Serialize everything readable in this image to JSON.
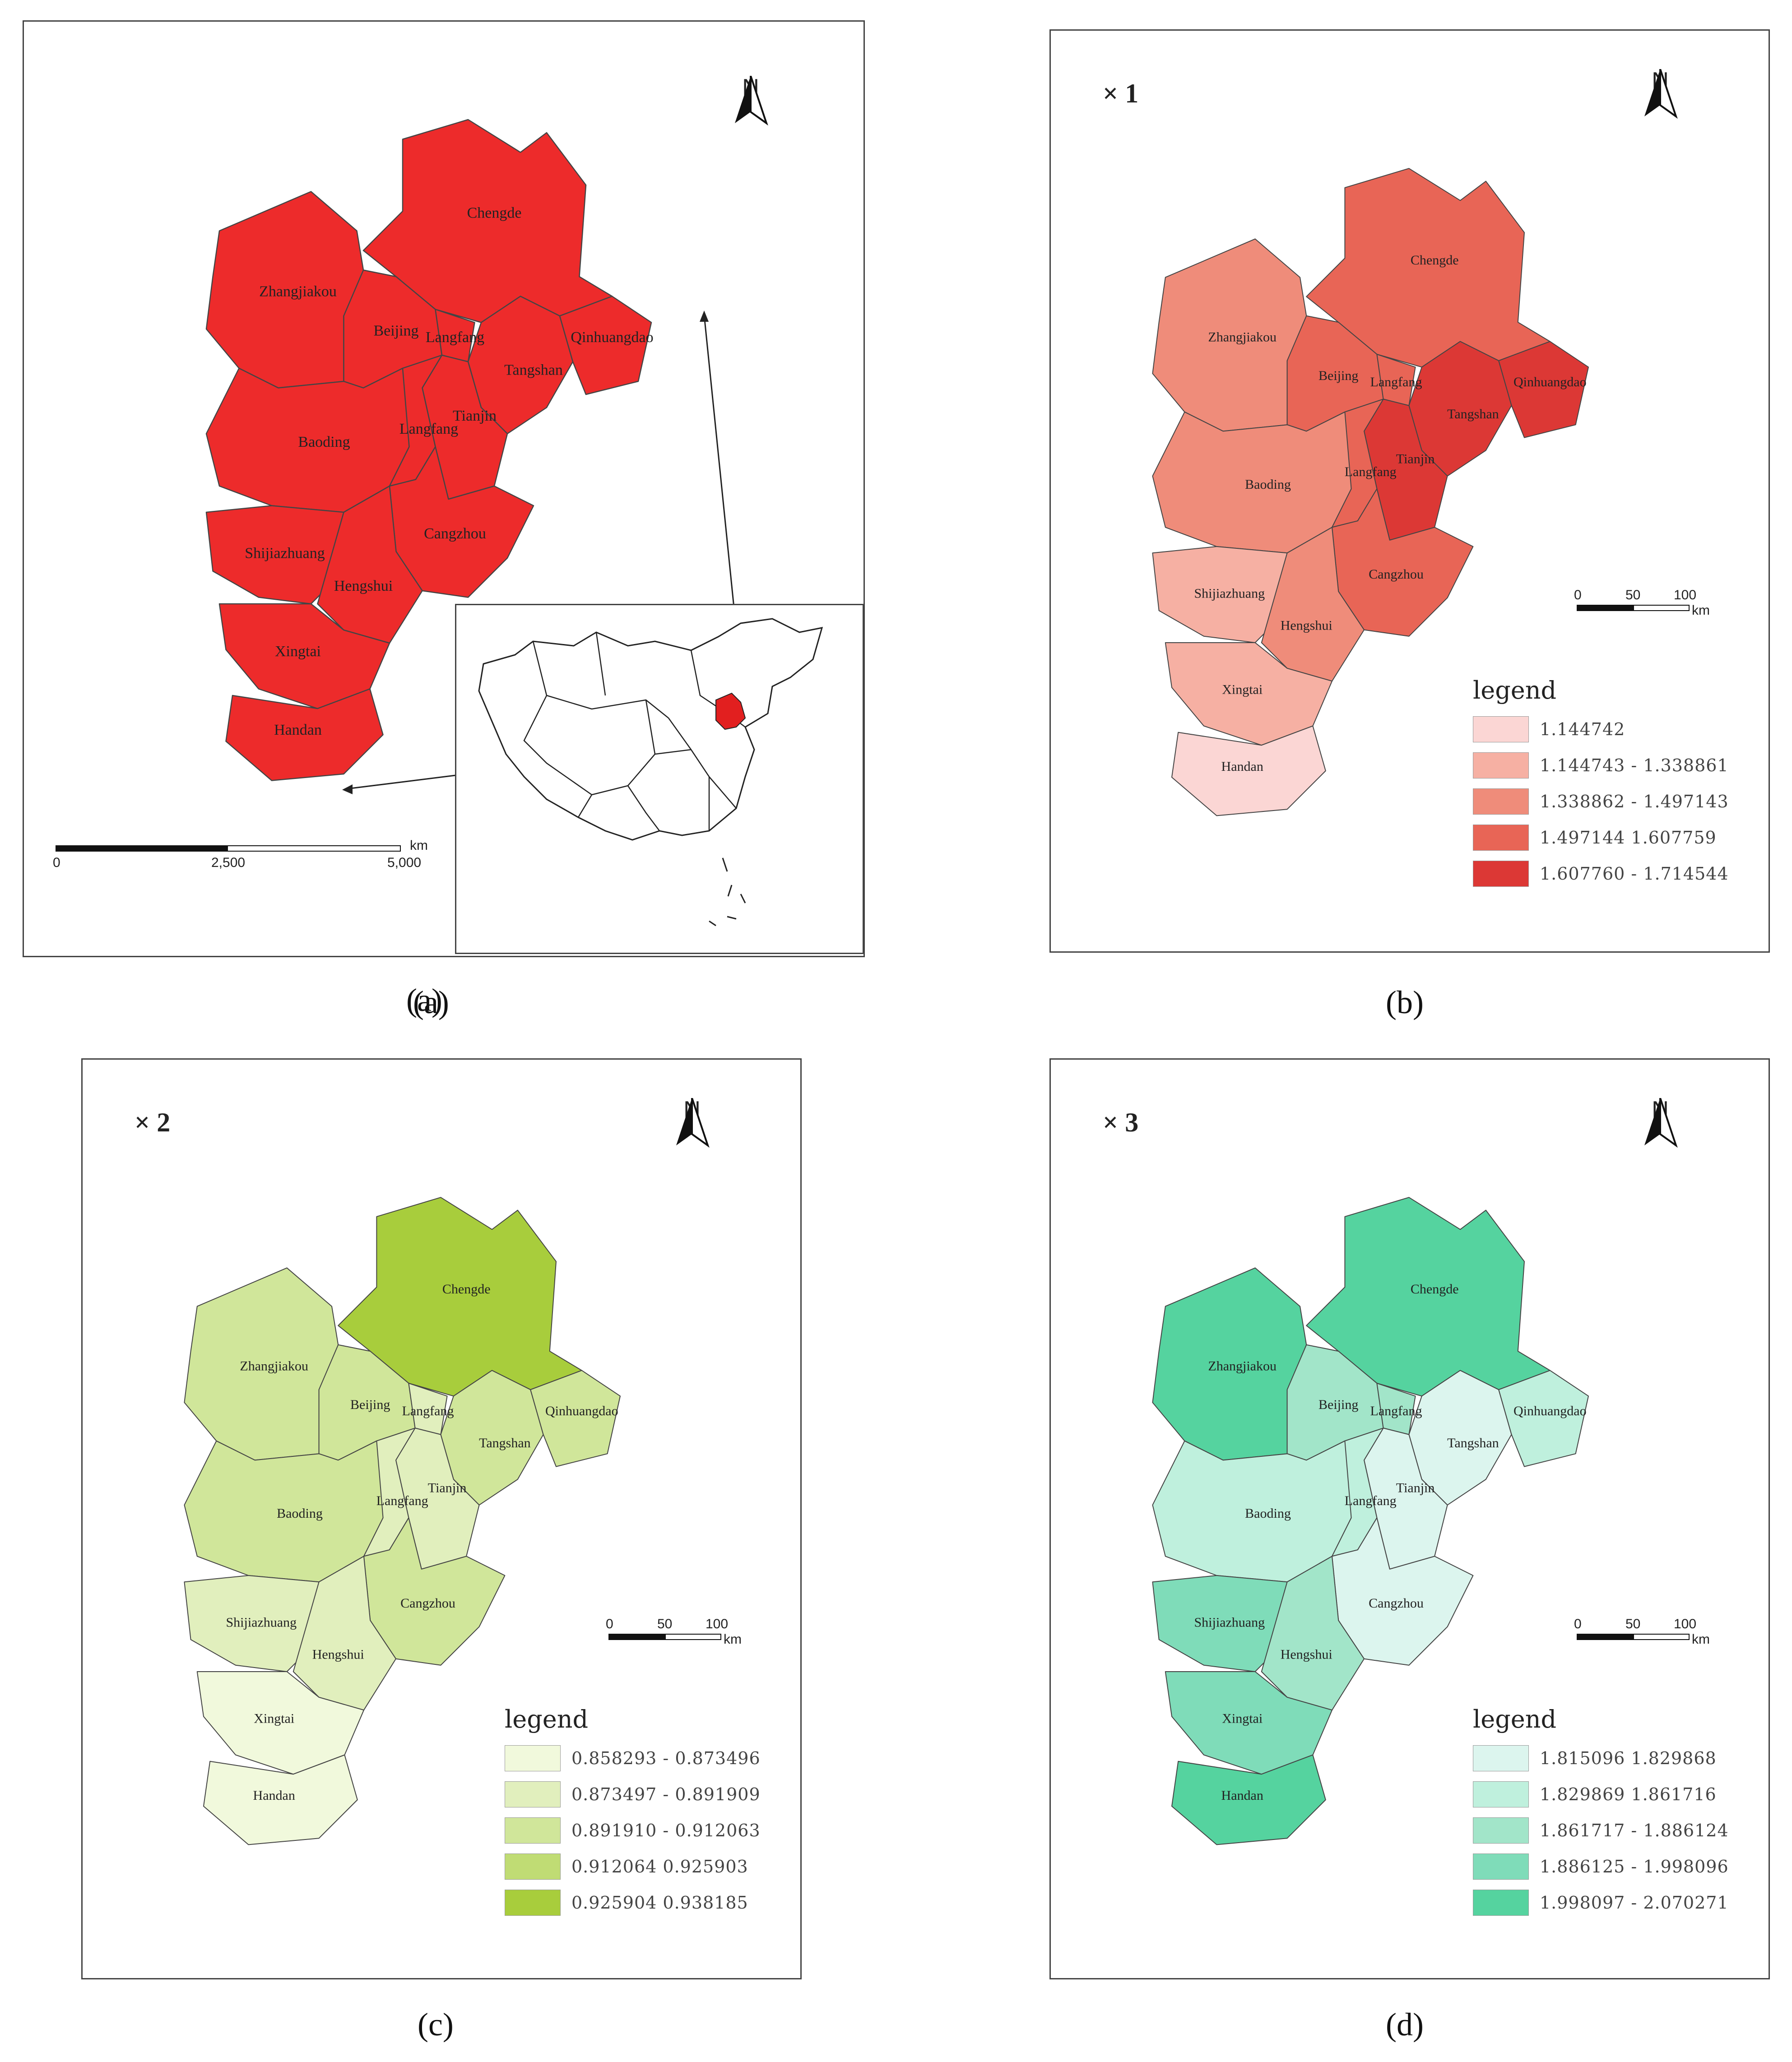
{
  "panels": [
    {
      "id": "a",
      "caption": "(a)",
      "fill_colors": [
        "#ed2b2b"
      ],
      "cities": [
        "Chengde",
        "Zhangjiakou",
        "Beijing",
        "Langfang",
        "Tangshan",
        "Qinhuangdao",
        "Tianjin",
        "Baoding",
        "Langfang",
        "Cangzhou",
        "Shijiazhuang",
        "Hengshui",
        "Xingtai",
        "Handan"
      ],
      "north": "N",
      "scalebar": {
        "ticks": [
          "0",
          "2,500",
          "5,000"
        ],
        "unit": "km"
      },
      "inset_highlight_color": "#e21f1f"
    },
    {
      "id": "b",
      "caption": "(b)",
      "series_label": "× 1",
      "north": "N",
      "scalebar": {
        "ticks": [
          "0",
          "50",
          "100"
        ],
        "unit": "km"
      },
      "legend": {
        "title": "legend",
        "classes": [
          {
            "range": "1.144742",
            "color": "#fbd6d4"
          },
          {
            "range": "1.144743 - 1.338861",
            "color": "#f6b0a3"
          },
          {
            "range": "1.338862 - 1.497143",
            "color": "#ef8c7a"
          },
          {
            "range": "1.497144   1.607759",
            "color": "#e86556"
          },
          {
            "range": "1.607760 - 1.714544",
            "color": "#dc3835"
          }
        ]
      },
      "cities": [
        "Chengde",
        "Zhangjiakou",
        "Beijing",
        "Langfang",
        "Tangshan",
        "Qinhuangdao",
        "Tianjin",
        "Baoding",
        "Langfang",
        "Cangzhou",
        "Shijiazhuang",
        "Hengshui",
        "Xingtai",
        "Handan"
      ]
    },
    {
      "id": "c",
      "caption": "(c)",
      "series_label": "× 2",
      "north": "N",
      "scalebar": {
        "ticks": [
          "0",
          "50",
          "100"
        ],
        "unit": "km"
      },
      "legend": {
        "title": "legend",
        "classes": [
          {
            "range": "0.858293 - 0.873496",
            "color": "#f1f9dc"
          },
          {
            "range": "0.873497 - 0.891909",
            "color": "#e1efbd"
          },
          {
            "range": "0.891910 - 0.912063",
            "color": "#d0e69a"
          },
          {
            "range": "0.912064   0.925903",
            "color": "#c0dc74"
          },
          {
            "range": "0.925904   0.938185",
            "color": "#a8cd3c"
          }
        ]
      },
      "cities": [
        "Chengde",
        "Zhangjiakou",
        "Beijing",
        "Langfang",
        "Tangshan",
        "Qinhuangdao",
        "Tianjin",
        "Baoding",
        "Langfang",
        "Cangzhou",
        "Shijiazhuang",
        "Hengshui",
        "Xingtai",
        "Handan"
      ]
    },
    {
      "id": "d",
      "caption": "(d)",
      "series_label": "× 3",
      "north": "N",
      "scalebar": {
        "ticks": [
          "0",
          "50",
          "100"
        ],
        "unit": "km"
      },
      "legend": {
        "title": "legend",
        "classes": [
          {
            "range": "1.815096   1.829868",
            "color": "#dcf5ee"
          },
          {
            "range": "1.829869   1.861716",
            "color": "#bff0dd"
          },
          {
            "range": "1.861717 - 1.886124",
            "color": "#a2e5c9"
          },
          {
            "range": "1.886125 - 1.998096",
            "color": "#7fdcb9"
          },
          {
            "range": "1.998097 - 2.070271",
            "color": "#55d39f"
          }
        ]
      },
      "cities": [
        "Chengde",
        "Zhangjiakou",
        "Beijing",
        "Langfang",
        "Tangshan",
        "Qinhuangdao",
        "Tianjin",
        "Baoding",
        "Langfang",
        "Cangzhou",
        "Shijiazhuang",
        "Hengshui",
        "Xingtai",
        "Handan"
      ]
    }
  ],
  "city_class": {
    "b": [
      3,
      2,
      3,
      3,
      4,
      4,
      4,
      2,
      3,
      3,
      1,
      2,
      1,
      0
    ],
    "c": [
      4,
      2,
      2,
      1,
      2,
      2,
      1,
      2,
      1,
      2,
      1,
      1,
      0,
      0
    ],
    "d": [
      4,
      4,
      2,
      2,
      0,
      1,
      0,
      1,
      1,
      0,
      3,
      2,
      3,
      4
    ]
  }
}
